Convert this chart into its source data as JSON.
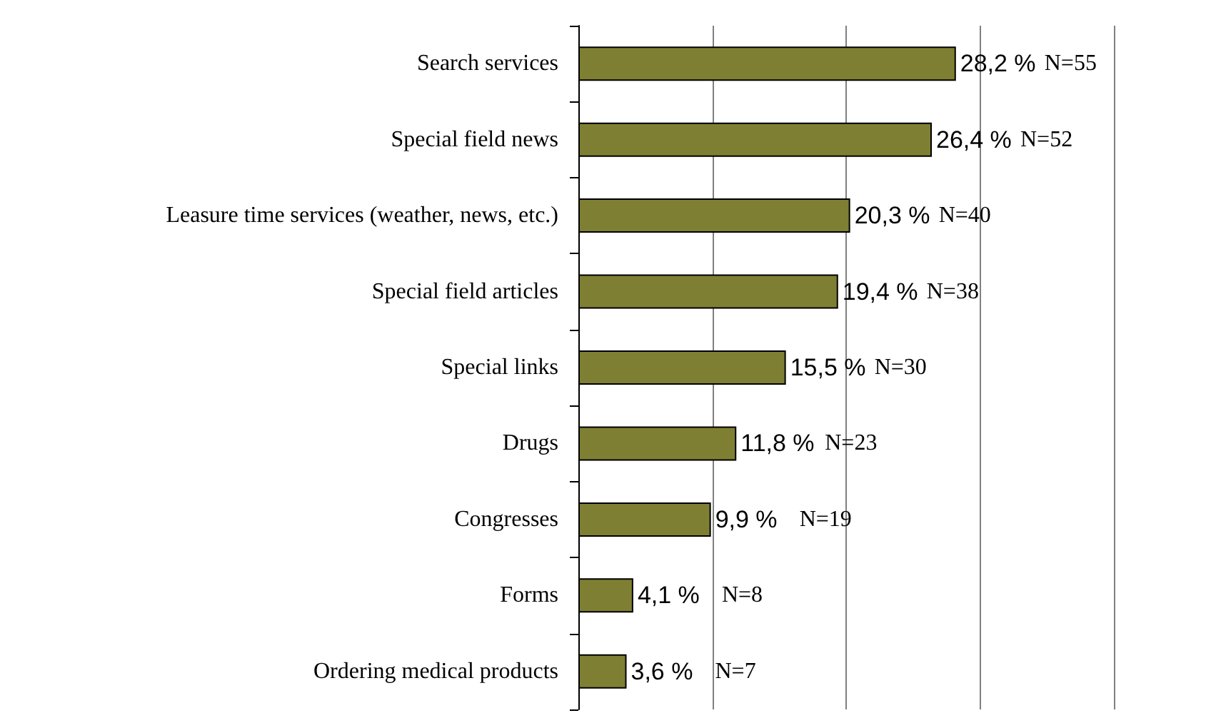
{
  "chart_data": {
    "type": "bar",
    "orientation": "horizontal",
    "categories": [
      "Search services",
      "Special field news",
      "Leasure time services (weather, news, etc.)",
      "Special field articles",
      "Special links",
      "Drugs",
      "Congresses",
      "Forms",
      "Ordering medical products"
    ],
    "values": [
      28.2,
      26.4,
      20.3,
      19.4,
      15.5,
      11.8,
      9.9,
      4.1,
      3.6
    ],
    "value_labels": [
      "28,2 %",
      "26,4 %",
      "20,3 %",
      "19,4 %",
      "15,5 %",
      "11,8 %",
      "9,9 %",
      "4,1 %",
      "3,6 %"
    ],
    "color": "#7f7f33",
    "xlim": [
      0,
      40
    ],
    "xticks": [
      {
        "value": 0,
        "label": null
      },
      {
        "value": 10,
        "label": null
      },
      {
        "value": 20,
        "label": null
      },
      {
        "value": 30,
        "label": null
      },
      {
        "value": 40,
        "label": null
      }
    ],
    "grid": "x",
    "tick_labels": "y",
    "annotations": [
      "N=55",
      "N=52",
      "N=40",
      "N=38",
      "N=30",
      "N=23",
      "N=19",
      "N=8",
      "N=7"
    ]
  }
}
